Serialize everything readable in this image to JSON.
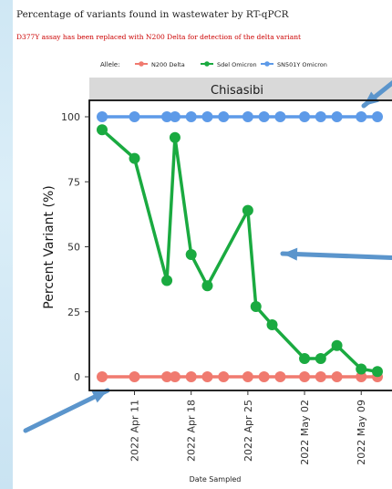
{
  "heading": "Percentage of variants found in wastewater by RT-qPCR",
  "note": "D377Y assay has been replaced with N200 Delta for detection of the delta variant",
  "chart_data": {
    "type": "line",
    "title": "Chisasibi",
    "xlabel": "Date Sampled",
    "ylabel": "Percent Variant (%)",
    "ylim": [
      0,
      100
    ],
    "y_ticks": [
      "0",
      "25",
      "50",
      "75",
      "100"
    ],
    "x_ticks": [
      {
        "date": "2022-04-11",
        "label": "2022 Apr 11"
      },
      {
        "date": "2022-04-18",
        "label": "2022 Apr 18"
      },
      {
        "date": "2022-04-25",
        "label": "2022 Apr 25"
      },
      {
        "date": "2022-05-02",
        "label": "2022 May 02"
      },
      {
        "date": "2022-05-09",
        "label": "2022 May 09"
      }
    ],
    "legend_title": "Allele:",
    "legend_position": "top",
    "grid": false,
    "series": [
      {
        "name": "N200 Delta",
        "color": "#f07a6f",
        "points": [
          {
            "x": "2022-04-07",
            "y": 0
          },
          {
            "x": "2022-04-11",
            "y": 0
          },
          {
            "x": "2022-04-15",
            "y": 0
          },
          {
            "x": "2022-04-16",
            "y": 0
          },
          {
            "x": "2022-04-18",
            "y": 0
          },
          {
            "x": "2022-04-20",
            "y": 0
          },
          {
            "x": "2022-04-22",
            "y": 0
          },
          {
            "x": "2022-04-25",
            "y": 0
          },
          {
            "x": "2022-04-27",
            "y": 0
          },
          {
            "x": "2022-04-29",
            "y": 0
          },
          {
            "x": "2022-05-02",
            "y": 0
          },
          {
            "x": "2022-05-04",
            "y": 0
          },
          {
            "x": "2022-05-06",
            "y": 0
          },
          {
            "x": "2022-05-09",
            "y": 0
          },
          {
            "x": "2022-05-11",
            "y": 0
          }
        ]
      },
      {
        "name": "Sdel Omicron",
        "color": "#1aaa40",
        "points": [
          {
            "x": "2022-04-07",
            "y": 95
          },
          {
            "x": "2022-04-11",
            "y": 84
          },
          {
            "x": "2022-04-15",
            "y": 37
          },
          {
            "x": "2022-04-16",
            "y": 92
          },
          {
            "x": "2022-04-18",
            "y": 47
          },
          {
            "x": "2022-04-20",
            "y": 35
          },
          {
            "x": "2022-04-25",
            "y": 64
          },
          {
            "x": "2022-04-26",
            "y": 27
          },
          {
            "x": "2022-04-28",
            "y": 20
          },
          {
            "x": "2022-05-02",
            "y": 7
          },
          {
            "x": "2022-05-04",
            "y": 7
          },
          {
            "x": "2022-05-06",
            "y": 12
          },
          {
            "x": "2022-05-09",
            "y": 3
          },
          {
            "x": "2022-05-11",
            "y": 2
          }
        ]
      },
      {
        "name": "SN501Y Omicron",
        "color": "#5d9ae8",
        "points": [
          {
            "x": "2022-04-07",
            "y": 100
          },
          {
            "x": "2022-04-11",
            "y": 100
          },
          {
            "x": "2022-04-15",
            "y": 100
          },
          {
            "x": "2022-04-16",
            "y": 100
          },
          {
            "x": "2022-04-18",
            "y": 100
          },
          {
            "x": "2022-04-20",
            "y": 100
          },
          {
            "x": "2022-04-22",
            "y": 100
          },
          {
            "x": "2022-04-25",
            "y": 100
          },
          {
            "x": "2022-04-27",
            "y": 100
          },
          {
            "x": "2022-04-29",
            "y": 100
          },
          {
            "x": "2022-05-02",
            "y": 100
          },
          {
            "x": "2022-05-04",
            "y": 100
          },
          {
            "x": "2022-05-06",
            "y": 100
          },
          {
            "x": "2022-05-09",
            "y": 100
          },
          {
            "x": "2022-05-11",
            "y": 100
          }
        ]
      }
    ]
  }
}
